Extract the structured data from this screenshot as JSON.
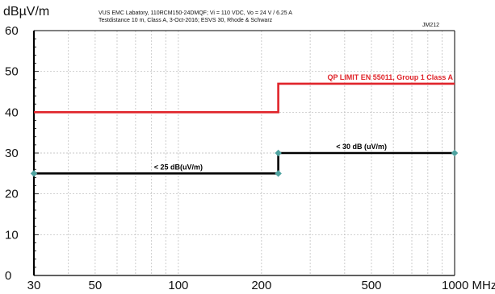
{
  "chart_data": {
    "type": "line",
    "ylabel": "dBµV/m",
    "header_line1": "VUS EMC Labatory, 110RCM150-24DMQF; Vi = 110 VDC, Vo = 24 V / 6.25 A",
    "header_line2": "Testdistance 10 m, Class A, 3-Oct-2016; ESVS 30, Rhode & Schwarz",
    "ref": "JM212",
    "x_scale": "log",
    "xlim": [
      30,
      1000
    ],
    "ylim": [
      0,
      60
    ],
    "x_ticks": [
      {
        "value": 30,
        "label": "30"
      },
      {
        "value": 50,
        "label": "50"
      },
      {
        "value": 100,
        "label": "100"
      },
      {
        "value": 200,
        "label": "200"
      },
      {
        "value": 500,
        "label": "500"
      },
      {
        "value": 1000,
        "label": "1000 MHz"
      }
    ],
    "x_minor_grid": [
      40,
      60,
      70,
      80,
      90,
      300,
      400,
      600,
      700,
      800,
      900
    ],
    "y_ticks": [
      {
        "value": 0,
        "label": "0"
      },
      {
        "value": 10,
        "label": "10"
      },
      {
        "value": 20,
        "label": "20"
      },
      {
        "value": 30,
        "label": "30"
      },
      {
        "value": 40,
        "label": "40"
      },
      {
        "value": 50,
        "label": "50"
      },
      {
        "value": 60,
        "label": "60"
      }
    ],
    "grid": true,
    "series": [
      {
        "name": "QP LIMIT  EN 55011, Group 1 Class A",
        "color": "#e0242a",
        "x": [
          30,
          230,
          230,
          1000
        ],
        "y": [
          40,
          40,
          47,
          47
        ]
      },
      {
        "name": "",
        "color": "#000000",
        "x": [
          30,
          230,
          230,
          1000
        ],
        "y": [
          25,
          25,
          30,
          30
        ]
      }
    ],
    "markers": [
      {
        "x": 30,
        "y": 25
      },
      {
        "x": 230,
        "y": 25
      },
      {
        "x": 230,
        "y": 30
      },
      {
        "x": 1000,
        "y": 30
      }
    ],
    "marker_color": "#4fa3a0",
    "annotations": [
      {
        "text": "< 25 dB(uV/m)",
        "x": 100,
        "y": 25,
        "color": "#000000"
      },
      {
        "text": "< 30 dB (uV/m)",
        "x": 460,
        "y": 30,
        "color": "#000000"
      }
    ]
  }
}
